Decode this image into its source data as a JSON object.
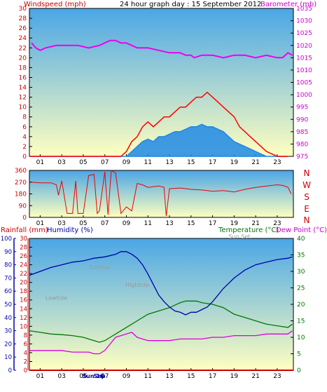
{
  "colors": {
    "wind": "#ff0000",
    "gust_fill": "#1e88e5",
    "barometer": "#ee00ee",
    "direction": "#ee0000",
    "rain": "#cc0000",
    "humidity": "#0000aa",
    "temperature": "#007700",
    "dewpoint": "#dd00dd",
    "bg_top": "#4aa6e6",
    "bg_bottom": "#ffffc0",
    "frame": "#000000"
  },
  "x_ticks": [
    "01",
    "03",
    "05",
    "07",
    "09",
    "11",
    "13",
    "15",
    "17",
    "19",
    "21",
    "23"
  ],
  "chart_data": [
    {
      "type": "line",
      "title": "24 hour graph day : 15 September 2012",
      "ylabel_left": "Windspeed (mph)",
      "ylabel_right": "Barometer (mb)",
      "ylim_left": [
        0,
        30
      ],
      "ylim_right": [
        975,
        1035
      ],
      "yticks_left": [
        0,
        2,
        4,
        6,
        8,
        10,
        12,
        14,
        16,
        18,
        20,
        22,
        24,
        26,
        28,
        30
      ],
      "yticks_right": [
        975,
        980,
        985,
        990,
        995,
        1000,
        1005,
        1010,
        1015,
        1020,
        1025,
        1030,
        1035
      ],
      "x_hours_range": [
        0,
        24.5
      ],
      "series": [
        {
          "axis": "right",
          "x": [
            0.2,
            0.6,
            1.0,
            1.5,
            2.5,
            3.5,
            4.5,
            5.5,
            6.5,
            7.0,
            7.5,
            8.0,
            8.5,
            9.0,
            9.5,
            10.0,
            11.0,
            12.0,
            13.0,
            14.0,
            14.5,
            15.0,
            15.3,
            16.0,
            17.0,
            18.0,
            19.0,
            20.0,
            21.0,
            22.0,
            23.0,
            23.5,
            24.0,
            24.4
          ],
          "values": [
            1021,
            1019,
            1018,
            1019,
            1020,
            1020,
            1020,
            1019,
            1020,
            1021,
            1022,
            1022,
            1021,
            1021,
            1020,
            1019,
            1019,
            1018,
            1017,
            1017,
            1016,
            1016,
            1015,
            1016,
            1016,
            1015,
            1016,
            1016,
            1015,
            1016,
            1015,
            1015,
            1017,
            1016
          ]
        },
        {
          "axis": "left",
          "x": [
            0.0,
            1.0,
            2.0,
            3.0,
            4.0,
            5.0,
            6.0,
            7.0,
            8.0,
            8.5,
            9.0,
            9.5,
            10.0,
            10.5,
            11.0,
            11.5,
            12.0,
            12.5,
            13.0,
            13.5,
            14.0,
            14.5,
            15.0,
            15.5,
            16.0,
            16.5,
            17.0,
            17.5,
            18.0,
            18.5,
            19.0,
            19.5,
            20.0,
            20.5,
            21.0,
            21.5,
            22.0,
            23.0,
            24.0
          ],
          "values": [
            0,
            0,
            0,
            0,
            0,
            0,
            0,
            0,
            0,
            0,
            1,
            3,
            4,
            6,
            7,
            6,
            7,
            8,
            8,
            9,
            10,
            10,
            11,
            12,
            12,
            13,
            12,
            11,
            10,
            9,
            8,
            6,
            5,
            4,
            3,
            2,
            1,
            0,
            0
          ]
        },
        {
          "axis": "left",
          "x": [
            0.0,
            8.5,
            9.0,
            9.5,
            10.0,
            10.5,
            11.0,
            11.5,
            12.0,
            12.5,
            13.0,
            13.5,
            14.0,
            14.5,
            15.0,
            15.5,
            16.0,
            16.5,
            17.0,
            17.5,
            18.0,
            18.5,
            19.0,
            19.5,
            20.0,
            20.5,
            21.0,
            21.5,
            22.0,
            24.0
          ],
          "values": [
            0,
            0,
            0,
            1,
            2,
            3,
            3.5,
            3,
            4,
            4,
            4.5,
            5,
            5,
            5.5,
            6,
            6,
            6.5,
            6,
            6,
            5.5,
            5,
            4,
            3,
            2.5,
            2,
            1.5,
            1,
            0.5,
            0,
            0
          ]
        }
      ]
    },
    {
      "type": "line",
      "ylim": [
        0,
        360
      ],
      "yticks": [
        0,
        90,
        180,
        270,
        360
      ],
      "compass_labels": [
        "N",
        "W",
        "S",
        "E",
        "N"
      ],
      "x_hours_range": [
        0,
        24.5
      ],
      "series": [
        {
          "x": [
            0.2,
            1.0,
            2.0,
            2.5,
            2.7,
            3.0,
            3.5,
            4.0,
            4.3,
            4.5,
            5.0,
            5.5,
            6.0,
            6.3,
            6.5,
            7.0,
            7.3,
            7.6,
            8.0,
            8.5,
            9.0,
            9.5,
            10.0,
            10.5,
            11.0,
            12.0,
            12.5,
            12.7,
            13.0,
            14.0,
            15.0,
            16.0,
            17.0,
            18.0,
            19.0,
            20.0,
            21.0,
            22.0,
            23.0,
            23.5,
            24.0,
            24.3
          ],
          "values": [
            270,
            265,
            265,
            250,
            170,
            280,
            30,
            30,
            280,
            30,
            30,
            320,
            330,
            30,
            50,
            350,
            20,
            360,
            340,
            30,
            80,
            50,
            260,
            250,
            230,
            240,
            230,
            10,
            220,
            225,
            215,
            210,
            200,
            205,
            195,
            215,
            230,
            240,
            250,
            245,
            230,
            180
          ]
        }
      ]
    },
    {
      "type": "line",
      "ylabel_left": "Rainfall (mm)",
      "ylabel_left2": "Humidity (%)",
      "ylabel_right": "Temperature (°C)",
      "ylabel_right2": "Dew Point (°C)",
      "ylim_rain": [
        0,
        30
      ],
      "ylim_humidity": [
        0,
        100
      ],
      "ylim_temp": [
        0,
        40
      ],
      "yticks_rain": [
        0,
        2,
        4,
        6,
        8,
        10,
        12,
        14,
        16,
        18,
        20,
        22,
        24,
        26,
        28,
        30
      ],
      "yticks_humidity": [
        0,
        10,
        20,
        30,
        40,
        50,
        60,
        70,
        80,
        90,
        100
      ],
      "yticks_temp": [
        0,
        5,
        10,
        15,
        20,
        25,
        30,
        35,
        40
      ],
      "x_hours_range": [
        0,
        24.5
      ],
      "annotations": [
        {
          "text": "Lowtide",
          "x": 2.5,
          "value": 16
        },
        {
          "text": "Sunrise",
          "x": 6.5,
          "value": 23
        },
        {
          "text": "Hightide",
          "x": 10.0,
          "value": 19
        },
        {
          "text": "Sun Set",
          "x": 19.5,
          "value": 30
        },
        {
          "text": "Sun 16",
          "x": 5.9,
          "value": 0
        },
        {
          "text": "Sep",
          "x": 6.5,
          "value": 0
        }
      ],
      "series": [
        {
          "axis": "humidity",
          "x": [
            0.0,
            1.0,
            2.0,
            3.0,
            4.0,
            5.0,
            6.0,
            7.0,
            8.0,
            8.5,
            9.0,
            9.5,
            10.0,
            10.5,
            11.0,
            11.5,
            12.0,
            12.5,
            13.0,
            13.5,
            14.0,
            14.5,
            15.0,
            15.5,
            16.0,
            16.5,
            17.0,
            17.5,
            18.0,
            19.0,
            20.0,
            21.0,
            22.0,
            23.0,
            24.0,
            24.4
          ],
          "values": [
            72,
            75,
            78,
            80,
            82,
            83,
            85,
            86,
            88,
            90,
            90,
            88,
            85,
            80,
            73,
            65,
            57,
            52,
            48,
            45,
            44,
            42,
            44,
            44,
            46,
            48,
            52,
            57,
            62,
            70,
            76,
            80,
            82,
            84,
            85,
            86
          ]
        },
        {
          "axis": "temp",
          "x": [
            0.0,
            1.0,
            2.0,
            3.0,
            4.0,
            5.0,
            5.5,
            6.0,
            6.5,
            7.0,
            7.5,
            8.0,
            9.0,
            10.0,
            11.0,
            12.0,
            13.0,
            14.0,
            14.5,
            15.0,
            15.5,
            16.0,
            17.0,
            18.0,
            19.0,
            20.0,
            21.0,
            22.0,
            23.0,
            24.0,
            24.4
          ],
          "values": [
            12,
            11.5,
            11,
            10.8,
            10.5,
            10,
            9.5,
            9,
            8.5,
            9,
            10,
            11,
            13,
            15,
            17,
            18,
            19,
            20.5,
            21,
            21,
            21,
            20.5,
            20,
            19,
            17,
            16,
            15,
            14,
            13.5,
            13,
            14
          ]
        },
        {
          "axis": "temp",
          "x": [
            0.0,
            1.0,
            2.0,
            3.0,
            4.0,
            5.0,
            5.5,
            6.0,
            6.5,
            7.0,
            7.5,
            8.0,
            8.5,
            9.0,
            9.5,
            10.0,
            11.0,
            12.0,
            13.0,
            14.0,
            15.0,
            16.0,
            17.0,
            18.0,
            19.0,
            20.0,
            21.0,
            22.0,
            23.0,
            24.0,
            24.4
          ],
          "values": [
            6,
            6,
            6,
            6,
            5.5,
            5.5,
            5.5,
            5,
            5,
            6,
            8,
            10,
            10.5,
            11,
            11.5,
            10,
            9,
            9,
            9,
            9.5,
            9.5,
            9.5,
            10,
            10,
            10.5,
            10.5,
            10.5,
            11,
            11,
            11,
            12
          ]
        },
        {
          "axis": "rain",
          "x": [
            0.0,
            24.5
          ],
          "values": [
            0,
            0
          ]
        }
      ]
    }
  ]
}
